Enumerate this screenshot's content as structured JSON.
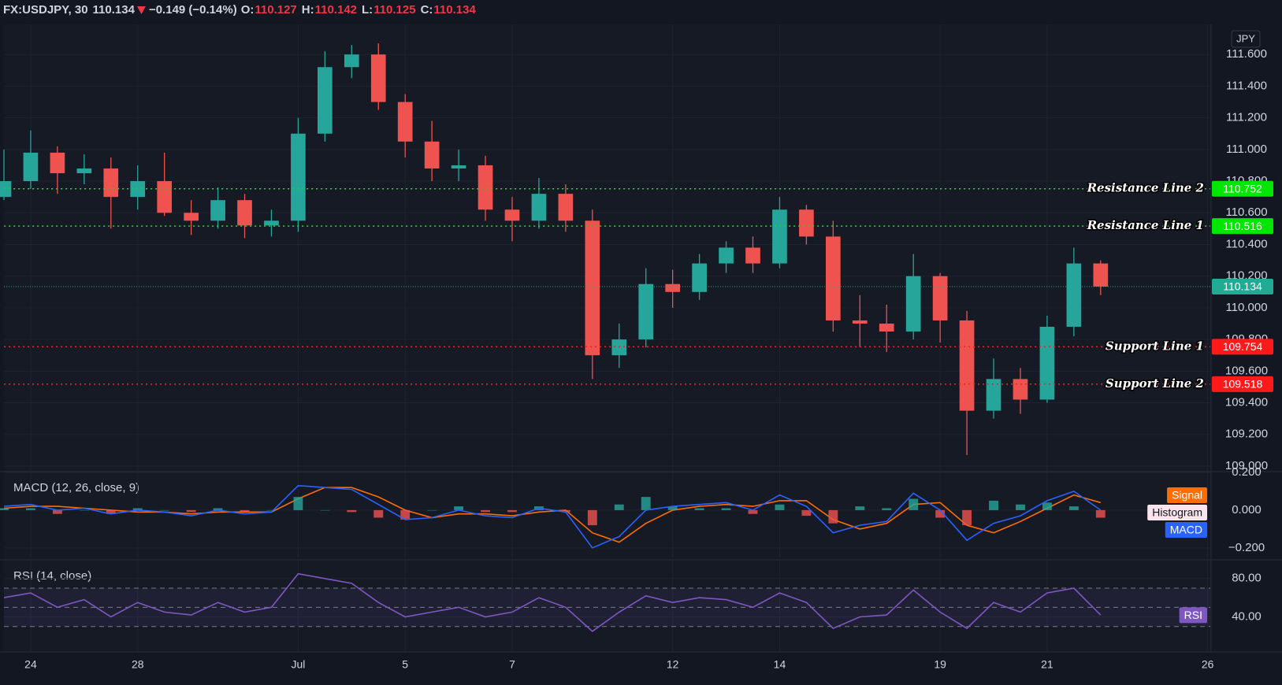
{
  "header": {
    "symbol": "FX:USDJPY, 30",
    "last": 110.134,
    "change": "−0.149 (−0.14%)",
    "open_label": "O:",
    "open": 110.127,
    "high_label": "H:",
    "high": 110.142,
    "low_label": "L:",
    "low": 110.125,
    "close_label": "C:",
    "close": 110.134
  },
  "chart_data": [
    {
      "type": "candlestick",
      "currency": "JPY",
      "up_color": "#26a69a",
      "down_color": "#ef5350",
      "grid": true,
      "xlim": [
        -0.5,
        22.05
      ],
      "ylim": [
        108.97,
        111.79
      ],
      "yticks": [
        {
          "value": 109.0,
          "label": "109.000"
        },
        {
          "value": 109.2,
          "label": "109.200"
        },
        {
          "value": 109.4,
          "label": "109.400"
        },
        {
          "value": 109.6,
          "label": "109.600"
        },
        {
          "value": 109.8,
          "label": "109.800"
        },
        {
          "value": 110.0,
          "label": "110.000"
        },
        {
          "value": 110.2,
          "label": "110.200"
        },
        {
          "value": 110.4,
          "label": "110.400"
        },
        {
          "value": 110.6,
          "label": "110.600"
        },
        {
          "value": 110.8,
          "label": "110.800"
        },
        {
          "value": 111.0,
          "label": "111.000"
        },
        {
          "value": 111.2,
          "label": "111.200"
        },
        {
          "value": 111.4,
          "label": "111.400"
        },
        {
          "value": 111.6,
          "label": "111.600"
        }
      ],
      "x": [
        -0.5,
        0,
        0.5,
        1,
        1.5,
        2,
        2.5,
        3,
        3.5,
        4,
        4.5,
        5,
        5.5,
        6,
        6.5,
        7,
        7.5,
        8,
        8.5,
        9,
        9.5,
        10,
        10.5,
        11,
        11.5,
        12,
        12.5,
        13,
        13.5,
        14,
        14.5,
        15,
        15.5,
        16,
        16.5,
        17,
        17.5,
        18,
        18.5,
        19,
        19.5,
        20
      ],
      "open": [
        110.7,
        110.8,
        110.98,
        110.85,
        110.88,
        110.7,
        110.8,
        110.6,
        110.55,
        110.68,
        110.52,
        110.55,
        111.1,
        111.52,
        111.6,
        111.3,
        111.05,
        110.88,
        110.9,
        110.62,
        110.55,
        110.72,
        110.55,
        109.7,
        109.8,
        110.15,
        110.1,
        110.28,
        110.38,
        110.28,
        110.62,
        110.45,
        109.92,
        109.9,
        109.85,
        110.2,
        109.92,
        109.35,
        109.55,
        109.42,
        109.88,
        110.28
      ],
      "high": [
        111.0,
        111.12,
        111.02,
        110.97,
        110.95,
        110.9,
        110.98,
        110.68,
        110.76,
        110.72,
        110.62,
        111.2,
        111.62,
        111.66,
        111.67,
        111.35,
        111.18,
        111.0,
        110.96,
        110.7,
        110.82,
        110.78,
        110.62,
        109.9,
        110.25,
        110.24,
        110.34,
        110.42,
        110.45,
        110.7,
        110.65,
        110.55,
        110.08,
        110.02,
        110.34,
        110.22,
        109.98,
        109.68,
        109.62,
        109.95,
        110.38,
        110.3
      ],
      "low": [
        110.68,
        110.75,
        110.72,
        110.78,
        110.5,
        110.62,
        110.58,
        110.46,
        110.5,
        110.44,
        110.45,
        110.48,
        111.05,
        111.45,
        111.25,
        110.95,
        110.8,
        110.8,
        110.55,
        110.42,
        110.5,
        110.48,
        109.55,
        109.62,
        109.75,
        110.0,
        110.05,
        110.22,
        110.22,
        110.25,
        110.4,
        109.85,
        109.75,
        109.72,
        109.8,
        109.78,
        109.07,
        109.3,
        109.33,
        109.4,
        109.82,
        110.08
      ],
      "close": [
        110.8,
        110.98,
        110.85,
        110.88,
        110.7,
        110.8,
        110.6,
        110.55,
        110.68,
        110.52,
        110.55,
        111.1,
        111.52,
        111.6,
        111.3,
        111.05,
        110.88,
        110.9,
        110.62,
        110.55,
        110.72,
        110.55,
        109.7,
        109.8,
        110.15,
        110.1,
        110.28,
        110.38,
        110.28,
        110.62,
        110.45,
        109.92,
        109.9,
        109.85,
        110.2,
        109.92,
        109.35,
        109.55,
        109.42,
        109.88,
        110.28,
        110.134
      ],
      "levels": [
        {
          "name": "Resistance Line 2",
          "value": 110.752,
          "color": "#00e600"
        },
        {
          "name": "Resistance Line 1",
          "value": 110.516,
          "color": "#00e600"
        },
        {
          "name": "Support Line 1",
          "value": 109.754,
          "color": "#ff1a1a"
        },
        {
          "name": "Support Line 2",
          "value": 109.518,
          "color": "#ff1a1a"
        }
      ],
      "price_line": {
        "value": 110.134,
        "color": "#22ab94"
      }
    },
    {
      "type": "line",
      "title": "MACD (12, 26, close, 9)",
      "grid": true,
      "xlim": [
        -0.5,
        22.05
      ],
      "ylim": [
        -0.255,
        0.2
      ],
      "yticks": [
        {
          "value": 0.2,
          "label": "0.200"
        },
        {
          "value": 0,
          "label": "0.000"
        },
        {
          "value": -0.2,
          "label": "−0.200"
        }
      ],
      "x": [
        -0.5,
        0,
        0.5,
        1,
        1.5,
        2,
        2.5,
        3,
        3.5,
        4,
        4.5,
        5,
        5.5,
        6,
        6.5,
        7,
        7.5,
        8,
        8.5,
        9,
        9.5,
        10,
        10.5,
        11,
        11.5,
        12,
        12.5,
        13,
        13.5,
        14,
        14.5,
        15,
        15.5,
        16,
        16.5,
        17,
        17.5,
        18,
        18.5,
        19,
        19.5,
        20
      ],
      "series": [
        {
          "name": "Signal",
          "color": "#ff6d00",
          "values": [
            0.01,
            0.02,
            0.02,
            0.01,
            0.0,
            -0.01,
            -0.01,
            -0.02,
            -0.01,
            -0.01,
            -0.01,
            0.06,
            0.12,
            0.12,
            0.07,
            0.0,
            -0.04,
            -0.02,
            -0.02,
            -0.03,
            -0.01,
            0.0,
            -0.12,
            -0.17,
            -0.07,
            0.0,
            0.02,
            0.03,
            0.02,
            0.05,
            0.05,
            -0.05,
            -0.1,
            -0.07,
            0.03,
            0.04,
            -0.08,
            -0.12,
            -0.06,
            0.01,
            0.08,
            0.04
          ]
        },
        {
          "name": "Histogram",
          "style": "histogram",
          "color": "#26a69a",
          "negative_color": "#ef5350",
          "badge_color": "#fce4ec",
          "values": [
            0.01,
            0.01,
            -0.02,
            0.0,
            -0.02,
            0.01,
            0.0,
            -0.01,
            0.01,
            -0.01,
            0.0,
            0.07,
            0.0,
            -0.01,
            -0.04,
            -0.05,
            0.0,
            0.02,
            -0.01,
            -0.01,
            0.02,
            -0.01,
            -0.08,
            0.03,
            0.07,
            0.02,
            0.01,
            0.01,
            -0.02,
            0.03,
            -0.03,
            -0.07,
            0.02,
            0.01,
            0.06,
            -0.04,
            -0.08,
            0.05,
            0.03,
            0.04,
            0.02,
            -0.04
          ]
        },
        {
          "name": "MACD",
          "color": "#2962ff",
          "values": [
            0.02,
            0.03,
            0.0,
            0.01,
            -0.02,
            0.0,
            -0.01,
            -0.03,
            0.0,
            -0.02,
            -0.01,
            0.13,
            0.12,
            0.11,
            0.03,
            -0.05,
            -0.04,
            0.0,
            -0.03,
            -0.04,
            0.01,
            -0.01,
            -0.2,
            -0.14,
            0.0,
            0.02,
            0.03,
            0.04,
            0.0,
            0.08,
            0.02,
            -0.12,
            -0.08,
            -0.06,
            0.09,
            0.0,
            -0.16,
            -0.07,
            -0.03,
            0.05,
            0.1,
            0.0
          ]
        }
      ]
    },
    {
      "type": "line",
      "title": "RSI (14, close)",
      "grid": true,
      "xlim": [
        -0.5,
        22.05
      ],
      "ylim": [
        4.3,
        98.7
      ],
      "yticks": [
        {
          "value": 80,
          "label": "80.00"
        },
        {
          "value": 40,
          "label": "40.00"
        }
      ],
      "hlines": [
        70,
        50,
        30
      ],
      "xticks": [
        {
          "value": 0,
          "label": "24"
        },
        {
          "value": 2,
          "label": "28"
        },
        {
          "value": 5,
          "label": "Jul"
        },
        {
          "value": 7,
          "label": "5"
        },
        {
          "value": 9,
          "label": "7"
        },
        {
          "value": 12,
          "label": "12"
        },
        {
          "value": 14,
          "label": "14"
        },
        {
          "value": 17,
          "label": "19"
        },
        {
          "value": 19,
          "label": "21"
        },
        {
          "value": 22,
          "label": "26"
        }
      ],
      "x": [
        -0.5,
        0,
        0.5,
        1,
        1.5,
        2,
        2.5,
        3,
        3.5,
        4,
        4.5,
        5,
        5.5,
        6,
        6.5,
        7,
        7.5,
        8,
        8.5,
        9,
        9.5,
        10,
        10.5,
        11,
        11.5,
        12,
        12.5,
        13,
        13.5,
        14,
        14.5,
        15,
        15.5,
        16,
        16.5,
        17,
        17.5,
        18,
        18.5,
        19,
        19.5,
        20
      ],
      "series": [
        {
          "name": "RSI",
          "color": "#7e57c2",
          "values": [
            60,
            65,
            50,
            58,
            40,
            55,
            45,
            42,
            55,
            45,
            50,
            85,
            80,
            75,
            55,
            40,
            45,
            50,
            40,
            45,
            60,
            50,
            25,
            45,
            62,
            55,
            60,
            58,
            50,
            65,
            55,
            28,
            40,
            42,
            68,
            45,
            28,
            55,
            45,
            65,
            70,
            42
          ]
        }
      ]
    }
  ]
}
